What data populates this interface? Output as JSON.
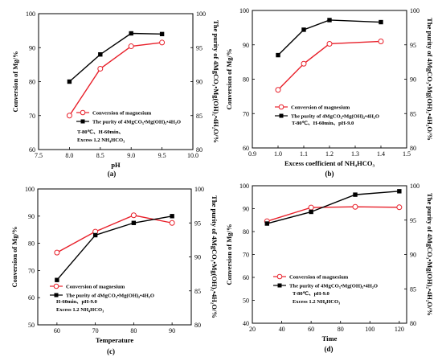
{
  "colors": {
    "magnesium": "#e8202a",
    "purity": "#000000"
  },
  "chart_data": [
    {
      "type": "line",
      "panel_label": "(a)",
      "xlabel": "pH",
      "ylabel_left": "Conversion of Mg/%",
      "ylabel_right": "The purity of 4MgCO₃•Mg(OH)₂•4H₂O/%",
      "xlim": [
        7.5,
        10.0
      ],
      "xticks": [
        "7.5",
        "8.0",
        "8.5",
        "9.0",
        "9.5",
        "10.0"
      ],
      "ylim_left": [
        60,
        100
      ],
      "yticks_left": [
        "60",
        "70",
        "80",
        "90",
        "100"
      ],
      "ylim_right": [
        80,
        100
      ],
      "yticks_right": [
        "80",
        "85",
        "90",
        "95",
        "100"
      ],
      "grid": false,
      "legend_position": "lower-right",
      "series": [
        {
          "name": "Conversion of magnesium",
          "axis": "left",
          "marker": "circle",
          "color": "#e8202a",
          "x": [
            8.0,
            8.5,
            9.0,
            9.5
          ],
          "y": [
            70.0,
            83.8,
            90.4,
            91.5
          ]
        },
        {
          "name": "The purity of 4MgCO₃•Mg(OH)₂•4H₂O",
          "axis": "right",
          "marker": "square",
          "color": "#000000",
          "x": [
            8.0,
            8.5,
            9.0,
            9.5
          ],
          "y": [
            90.0,
            94.0,
            97.1,
            97.0
          ]
        }
      ],
      "annotations": [
        "T-80℃、H-60min、",
        "Excess 1.2 NH₄HCO₃"
      ]
    },
    {
      "type": "line",
      "panel_label": "(b)",
      "xlabel": "Excess coefficient of NH₄HCO₃",
      "ylabel_left": "Conversion of Mg/%",
      "ylabel_right": "The purity of 4MgCO₃•Mg(OH)₂•4H₂O/%",
      "xlim": [
        0.9,
        1.5
      ],
      "xticks": [
        "0.9",
        "1.0",
        "1.1",
        "1.2",
        "1.3",
        "1.4",
        "1.5"
      ],
      "ylim_left": [
        60,
        100
      ],
      "yticks_left": [
        "60",
        "70",
        "80",
        "90",
        "100"
      ],
      "ylim_right": [
        80,
        100
      ],
      "yticks_right": [
        "80",
        "85",
        "90",
        "95",
        "100"
      ],
      "grid": false,
      "legend_position": "lower-left",
      "series": [
        {
          "name": "Conversion of magnesium",
          "axis": "left",
          "marker": "circle",
          "color": "#e8202a",
          "x": [
            1.0,
            1.1,
            1.2,
            1.4
          ],
          "y": [
            76.9,
            84.5,
            90.3,
            91.0
          ]
        },
        {
          "name": "The purity of 4MgCO₃•Mg(OH)₂•4H₂O",
          "axis": "right",
          "marker": "square",
          "color": "#000000",
          "x": [
            1.0,
            1.1,
            1.2,
            1.4
          ],
          "y": [
            93.5,
            97.2,
            98.6,
            98.3
          ]
        }
      ],
      "annotations": [
        "T-80℃、H-60min、pH-9.0"
      ]
    },
    {
      "type": "line",
      "panel_label": "(c)",
      "xlabel": "Temperature",
      "ylabel_left": "Conversion of Mg/%",
      "ylabel_right": "The purity of 4MgCO₃•Mg(OH)₂•4H₂O/%",
      "xlim": [
        55,
        95
      ],
      "xticks": [
        "60",
        "70",
        "80",
        "90"
      ],
      "ylim_left": [
        50,
        100
      ],
      "yticks_left": [
        "50",
        "60",
        "70",
        "80",
        "90",
        "100"
      ],
      "ylim_right": [
        80,
        100
      ],
      "yticks_right": [
        "80",
        "85",
        "90",
        "95",
        "100"
      ],
      "grid": false,
      "legend_position": "lower-left",
      "series": [
        {
          "name": "Conversion of magnesium",
          "axis": "left",
          "marker": "circle",
          "color": "#e8202a",
          "x": [
            60,
            70,
            80,
            90
          ],
          "y": [
            76.6,
            84.3,
            90.3,
            87.5
          ]
        },
        {
          "name": "The purity of 4MgCO₃•Mg(OH)₂•4H₂O",
          "axis": "right",
          "marker": "square",
          "color": "#000000",
          "x": [
            60,
            70,
            80,
            90
          ],
          "y": [
            86.6,
            93.2,
            95.0,
            96.0
          ]
        }
      ],
      "annotations": [
        "H-60min、pH-9.0",
        "Excess 1.2 NH₄HCO₃"
      ]
    },
    {
      "type": "line",
      "panel_label": "(d)",
      "xlabel": "Time",
      "ylabel_left": "Conversion of Mg/%",
      "ylabel_right": "The purity of 4MgCO₃•Mg(OH)₂•4H₂O/%",
      "xlim": [
        20,
        125
      ],
      "xticks": [
        "20",
        "40",
        "60",
        "80",
        "100",
        "120"
      ],
      "ylim_left": [
        40,
        100
      ],
      "yticks_left": [
        "40",
        "50",
        "60",
        "70",
        "80",
        "90",
        "100"
      ],
      "ylim_right": [
        80,
        100
      ],
      "yticks_right": [
        "80",
        "85",
        "90",
        "95",
        "100"
      ],
      "grid": false,
      "legend_position": "lower-left",
      "series": [
        {
          "name": "Conversion of magnesium",
          "axis": "left",
          "marker": "circle",
          "color": "#e8202a",
          "x": [
            30,
            60,
            90,
            120
          ],
          "y": [
            84.5,
            90.5,
            90.8,
            90.6
          ]
        },
        {
          "name": "The purity of 4MgCO₃•Mg(OH)₂•4H₂O",
          "axis": "right",
          "marker": "square",
          "color": "#000000",
          "x": [
            30,
            60,
            90,
            120
          ],
          "y": [
            94.5,
            96.2,
            98.7,
            99.2
          ]
        }
      ],
      "annotations": [
        "T-80℃、pH-9.0",
        "Excess 1.2 NH₄HCO₃"
      ]
    }
  ]
}
